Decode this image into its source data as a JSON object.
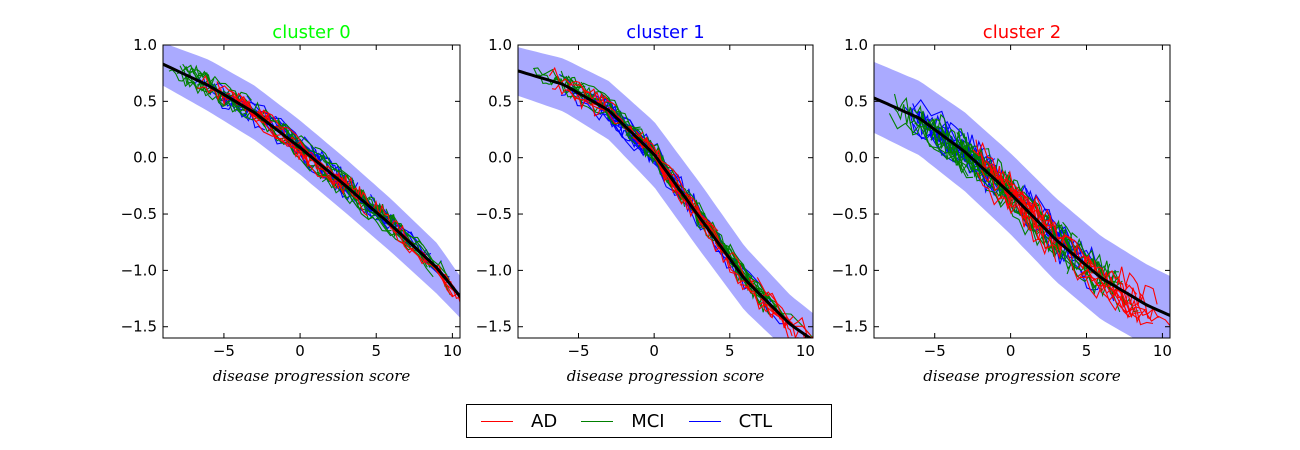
{
  "legend": {
    "items": [
      {
        "label": "AD",
        "color": "#ff0000"
      },
      {
        "label": "MCI",
        "color": "#008000"
      },
      {
        "label": "CTL",
        "color": "#0000ff"
      }
    ]
  },
  "chart_data": [
    {
      "type": "line",
      "title": "cluster 0",
      "title_color": "#00ff00",
      "xlabel": "disease progression score",
      "ylabel": "",
      "xlim": [
        -9,
        10.5
      ],
      "ylim": [
        -1.6,
        1.0
      ],
      "xticks": [
        -5,
        0,
        5,
        10
      ],
      "yticks": [
        1.0,
        0.5,
        0.0,
        -0.5,
        -1.0,
        -1.5
      ],
      "xtick_labels": [
        "−5",
        "0",
        "5",
        "10"
      ],
      "ytick_labels": [
        "1.0",
        "0.5",
        "0.0",
        "−0.5",
        "−1.0",
        "−1.5"
      ],
      "mean_curve": {
        "x": [
          -9,
          -6,
          -3,
          0,
          3,
          6,
          9,
          10.5
        ],
        "y": [
          0.83,
          0.64,
          0.4,
          0.09,
          -0.25,
          -0.6,
          -0.98,
          -1.23
        ]
      },
      "band": {
        "x": [
          -9,
          -6,
          -3,
          0,
          3,
          6,
          9,
          10.5
        ],
        "upper": [
          1.02,
          0.87,
          0.64,
          0.33,
          -0.01,
          -0.37,
          -0.76,
          -1.05
        ],
        "lower": [
          0.64,
          0.41,
          0.16,
          -0.15,
          -0.49,
          -0.84,
          -1.21,
          -1.42
        ]
      },
      "groups": [
        {
          "name": "AD",
          "x_range": [
            -7,
            10
          ],
          "count": 22
        },
        {
          "name": "MCI",
          "x_range": [
            -9,
            9
          ],
          "count": 40
        },
        {
          "name": "CTL",
          "x_range": [
            -7,
            7
          ],
          "count": 30
        }
      ],
      "noise": 0.06
    },
    {
      "type": "line",
      "title": "cluster 1",
      "title_color": "#0000ff",
      "xlabel": "disease progression score",
      "ylabel": "",
      "xlim": [
        -9,
        10.5
      ],
      "ylim": [
        -1.6,
        1.0
      ],
      "xticks": [
        -5,
        0,
        5,
        10
      ],
      "yticks": [
        1.0,
        0.5,
        0.0,
        -0.5,
        -1.0,
        -1.5
      ],
      "xtick_labels": [
        "−5",
        "0",
        "5",
        "10"
      ],
      "ytick_labels": [
        "1.0",
        "0.5",
        "0.0",
        "−0.5",
        "−1.0",
        "−1.5"
      ],
      "mean_curve": {
        "x": [
          -9,
          -6,
          -3,
          0,
          3,
          6,
          9,
          10.5
        ],
        "y": [
          0.77,
          0.65,
          0.42,
          0.03,
          -0.53,
          -1.08,
          -1.48,
          -1.62
        ]
      },
      "band": {
        "x": [
          -9,
          -6,
          -3,
          0,
          3,
          6,
          9,
          10.5
        ],
        "upper": [
          0.98,
          0.88,
          0.68,
          0.32,
          -0.22,
          -0.79,
          -1.22,
          -1.38
        ],
        "lower": [
          0.55,
          0.41,
          0.16,
          -0.26,
          -0.82,
          -1.36,
          -1.74,
          -1.85
        ]
      },
      "groups": [
        {
          "name": "AD",
          "x_range": [
            -7,
            10
          ],
          "count": 24
        },
        {
          "name": "MCI",
          "x_range": [
            -8,
            8
          ],
          "count": 40
        },
        {
          "name": "CTL",
          "x_range": [
            -7,
            6
          ],
          "count": 28
        }
      ],
      "noise": 0.06
    },
    {
      "type": "line",
      "title": "cluster 2",
      "title_color": "#ff0000",
      "xlabel": "disease progression score",
      "ylabel": "",
      "xlim": [
        -9,
        10.5
      ],
      "ylim": [
        -1.6,
        1.0
      ],
      "xticks": [
        -5,
        0,
        5,
        10
      ],
      "yticks": [
        1.0,
        0.5,
        0.0,
        -0.5,
        -1.0,
        -1.5
      ],
      "xtick_labels": [
        "−5",
        "0",
        "5",
        "10"
      ],
      "ytick_labels": [
        "1.0",
        "0.5",
        "0.0",
        "−0.5",
        "−1.0",
        "−1.5"
      ],
      "mean_curve": {
        "x": [
          -9,
          -6,
          -3,
          0,
          3,
          6,
          9,
          10.5
        ],
        "y": [
          0.53,
          0.35,
          0.05,
          -0.32,
          -0.73,
          -1.07,
          -1.31,
          -1.4
        ]
      },
      "band": {
        "x": [
          -9,
          -6,
          -3,
          0,
          3,
          6,
          9,
          10.5
        ],
        "upper": [
          0.85,
          0.68,
          0.4,
          0.04,
          -0.36,
          -0.7,
          -0.95,
          -1.05
        ],
        "lower": [
          0.22,
          0.02,
          -0.3,
          -0.68,
          -1.1,
          -1.44,
          -1.67,
          -1.78
        ]
      },
      "groups": [
        {
          "name": "AD",
          "x_range": [
            -3,
            10
          ],
          "count": 26
        },
        {
          "name": "MCI",
          "x_range": [
            -8,
            7
          ],
          "count": 42
        },
        {
          "name": "CTL",
          "x_range": [
            -7,
            5
          ],
          "count": 32
        }
      ],
      "noise": 0.1
    }
  ]
}
